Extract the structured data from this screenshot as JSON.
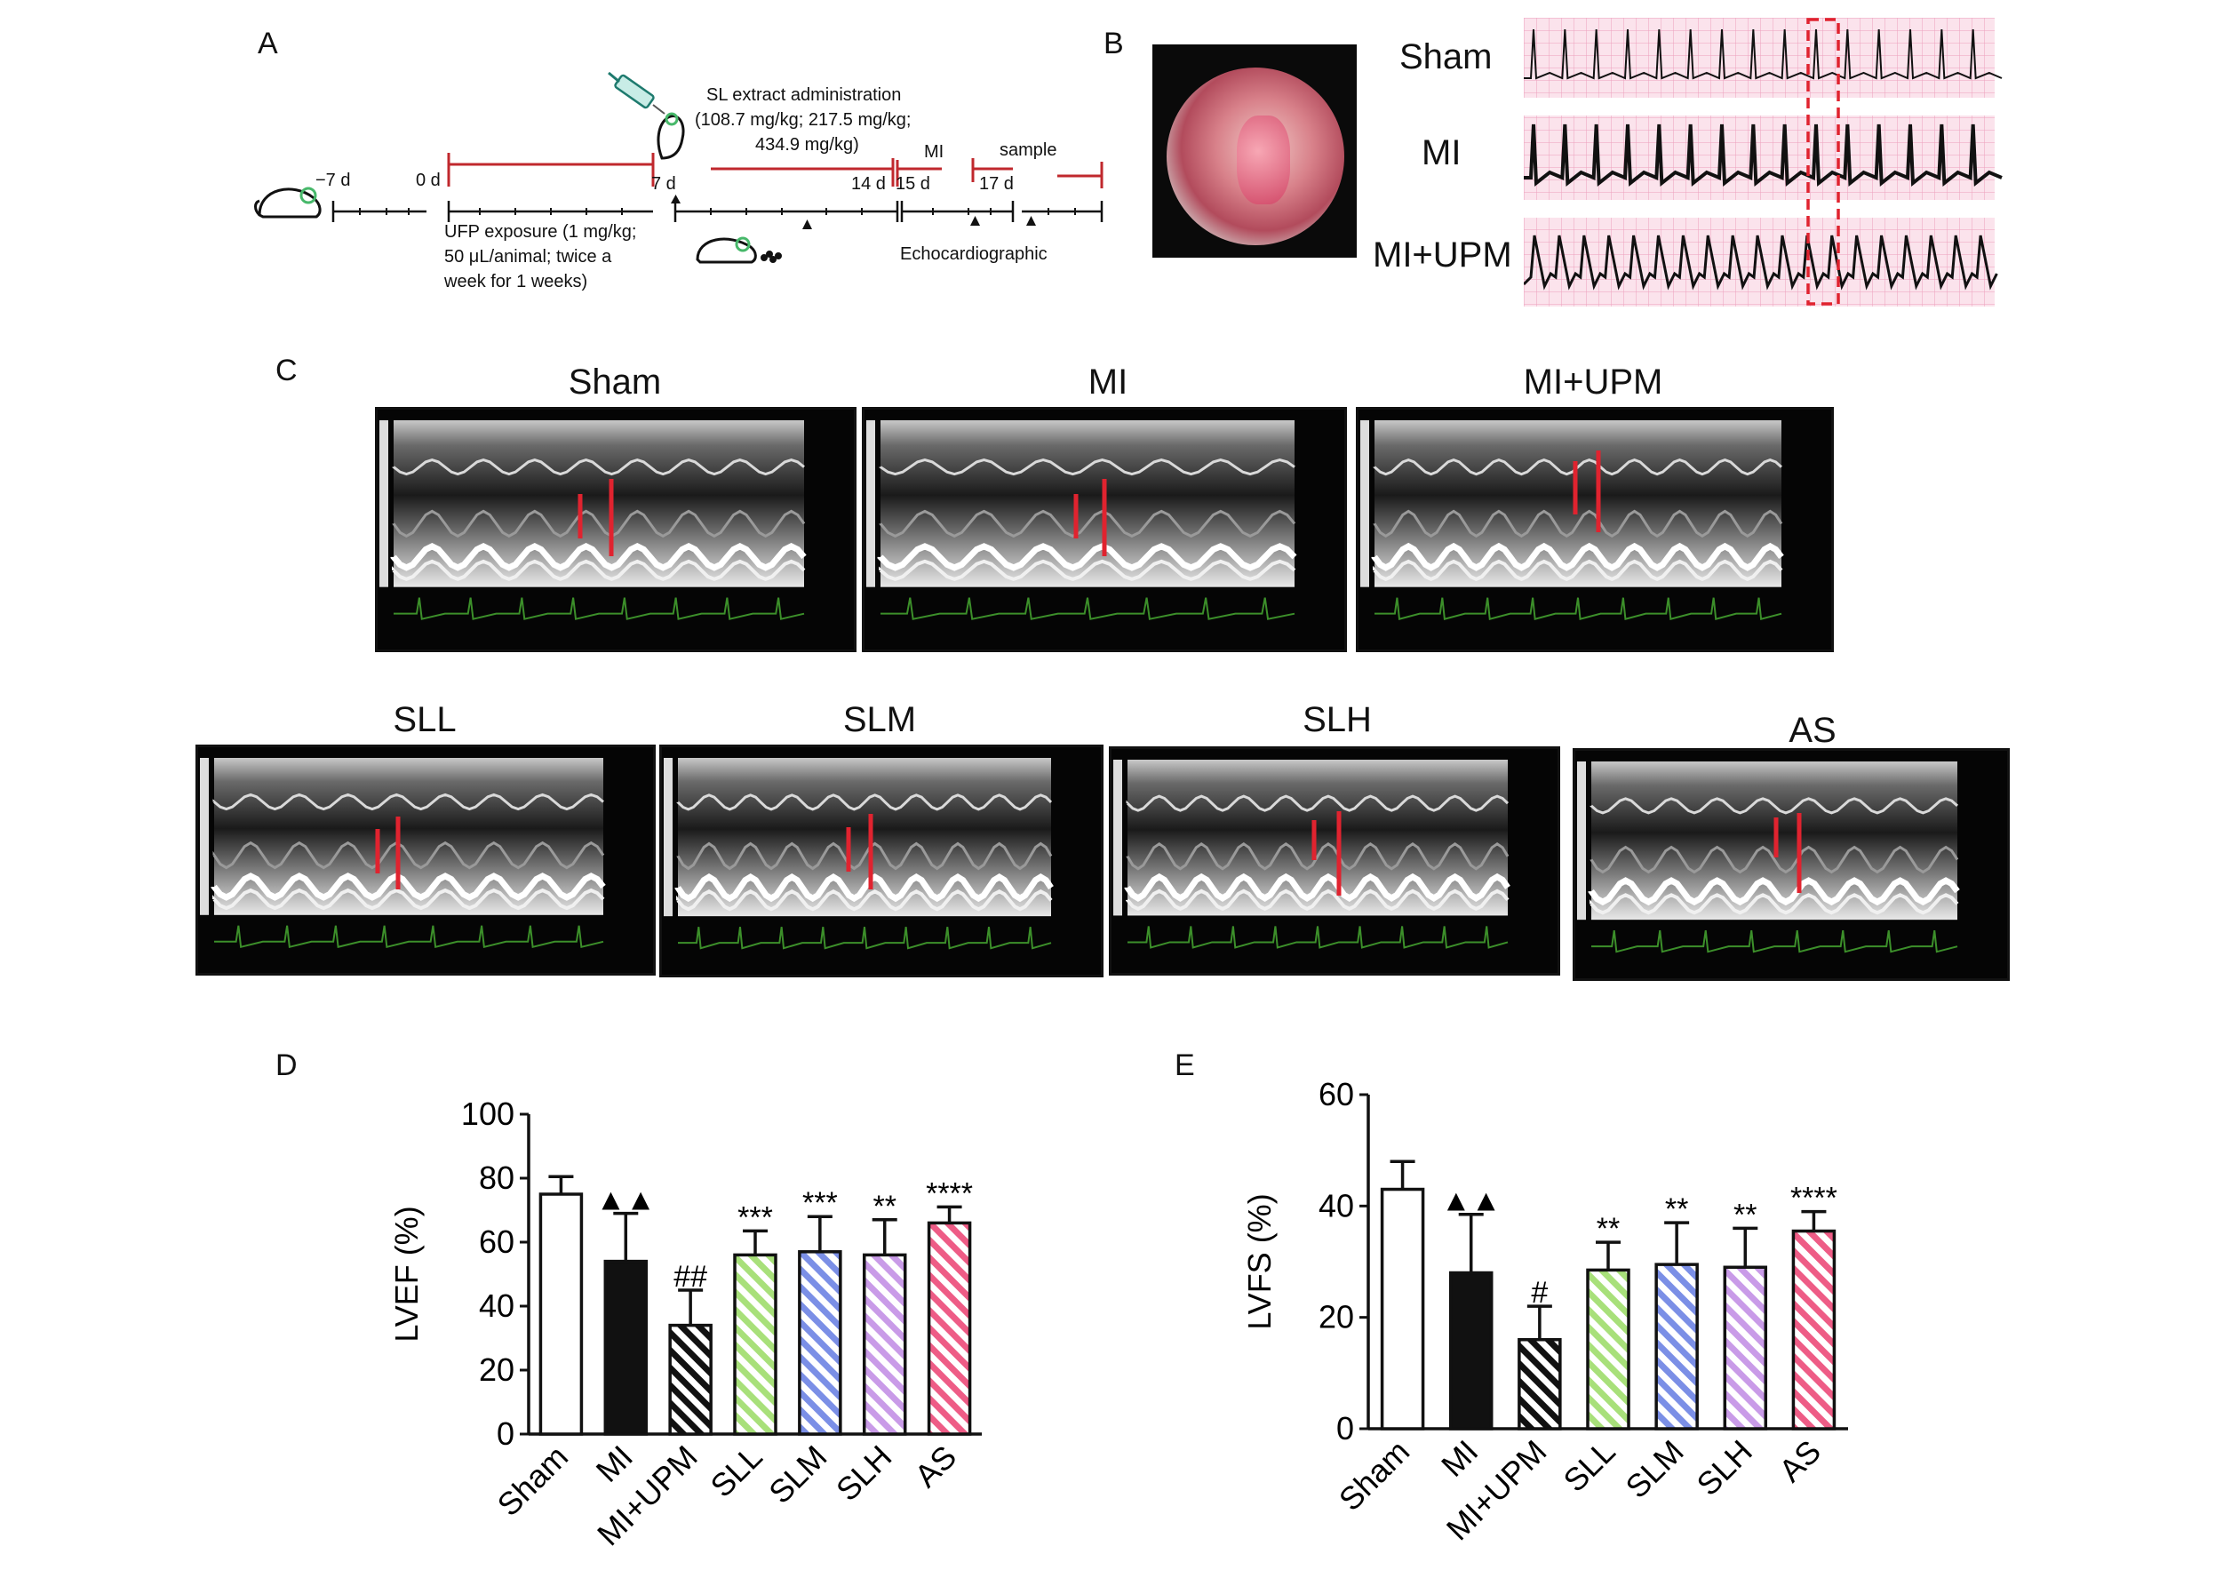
{
  "panel_a": {
    "letter": "A",
    "extract_title": "SL extract administration",
    "extract_doses_1": "(108.7 mg/kg; 217.5 mg/kg;",
    "extract_doses_2": "434.9 mg/kg)",
    "mi_label": "MI",
    "sample_label": "sample",
    "days": [
      "−7 d",
      "0 d",
      "7 d",
      "14 d",
      "15 d",
      "17 d"
    ],
    "ufp_line1": "UFP exposure (1 mg/kg;",
    "ufp_line2": "50 μL/animal; twice a",
    "ufp_line3": "week for 1 weeks)",
    "echo_label": "Echocardiographic",
    "icons": [
      "mouse-icon",
      "syringe-icon",
      "mouse-feeding-icon"
    ]
  },
  "panel_b": {
    "letter": "B",
    "rows": [
      "Sham",
      "MI",
      "MI+UPM"
    ]
  },
  "panel_c": {
    "letter": "C",
    "top_titles": [
      "Sham",
      "MI",
      "MI+UPM"
    ],
    "bottom_titles": [
      "SLL",
      "SLM",
      "SLH",
      "AS"
    ]
  },
  "colors": {
    "sham": "#ffffff",
    "mi": "#111111",
    "mi_upm": "#ffffff",
    "sll": "#a8e07a",
    "slm": "#7b8fe6",
    "slh": "#c99be8",
    "as": "#ee5c86",
    "timeline_red": "#c0282d",
    "ecg_pink": "#f6c9d8"
  },
  "chart_data": [
    {
      "panel_letter": "D",
      "type": "bar",
      "ylabel": "LVEF (%)",
      "ylim": [
        0,
        100
      ],
      "yticks": [
        0,
        20,
        40,
        60,
        80,
        100
      ],
      "categories": [
        "Sham",
        "MI",
        "MI+UPM",
        "SLL",
        "SLM",
        "SLH",
        "AS"
      ],
      "values": [
        75,
        54,
        34,
        56,
        57,
        56,
        66
      ],
      "errors": [
        5.5,
        15,
        11,
        7.5,
        11,
        11,
        5
      ],
      "annotations": [
        "",
        "▲▲",
        "##",
        "***",
        "***",
        "**",
        "****"
      ]
    },
    {
      "panel_letter": "E",
      "type": "bar",
      "ylabel": "LVFS (%)",
      "ylim": [
        0,
        60
      ],
      "yticks": [
        0,
        20,
        40,
        60
      ],
      "categories": [
        "Sham",
        "MI",
        "MI+UPM",
        "SLL",
        "SLM",
        "SLH",
        "AS"
      ],
      "values": [
        43,
        28,
        16,
        28.5,
        29.5,
        29,
        35.5
      ],
      "errors": [
        5,
        10.5,
        6,
        5,
        7.5,
        7,
        3.5
      ],
      "annotations": [
        "",
        "▲▲",
        "#",
        "**",
        "**",
        "**",
        "****"
      ]
    }
  ]
}
